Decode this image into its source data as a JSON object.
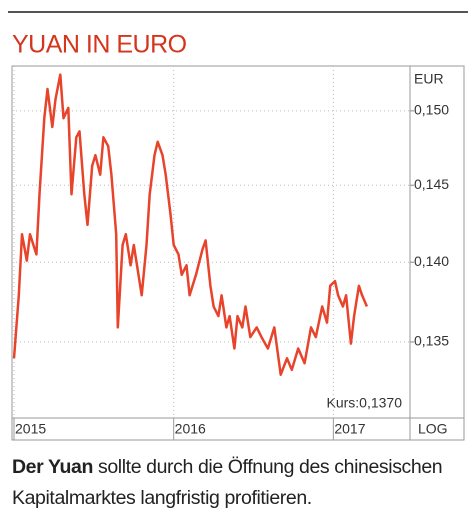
{
  "chart_data": {
    "type": "line",
    "title": "YUAN IN EURO",
    "ylabel": "EUR",
    "scale_label": "LOG",
    "log_scale": true,
    "grid": true,
    "annotation": "Kurs:0,1370",
    "x": [
      2015.0,
      2015.03,
      2015.05,
      2015.08,
      2015.1,
      2015.14,
      2015.16,
      2015.19,
      2015.21,
      2015.24,
      2015.26,
      2015.29,
      2015.31,
      2015.34,
      2015.36,
      2015.39,
      2015.41,
      2015.44,
      2015.46,
      2015.49,
      2015.51,
      2015.54,
      2015.56,
      2015.59,
      2015.61,
      2015.64,
      2015.65,
      2015.68,
      2015.7,
      2015.73,
      2015.75,
      2015.78,
      2015.8,
      2015.83,
      2015.85,
      2015.88,
      2015.9,
      2015.93,
      2015.95,
      2015.98,
      2016.0,
      2016.03,
      2016.05,
      2016.08,
      2016.1,
      2016.14,
      2016.18,
      2016.2,
      2016.23,
      2016.25,
      2016.28,
      2016.3,
      2016.33,
      2016.35,
      2016.38,
      2016.4,
      2016.43,
      2016.45,
      2016.48,
      2016.52,
      2016.55,
      2016.59,
      2016.63,
      2016.67,
      2016.71,
      2016.74,
      2016.78,
      2016.82,
      2016.86,
      2016.89,
      2016.93,
      2016.96,
      2016.98,
      2017.01,
      2017.03,
      2017.06,
      2017.08,
      2017.11,
      2017.13,
      2017.16,
      2017.18,
      2017.21
    ],
    "series": [
      {
        "name": "Yuan in Euro",
        "color": "#e8432b",
        "values": [
          0.134,
          0.1379,
          0.1418,
          0.1401,
          0.1418,
          0.1405,
          0.1444,
          0.1495,
          0.1515,
          0.1489,
          0.1508,
          0.1525,
          0.1495,
          0.1502,
          0.1444,
          0.1482,
          0.1486,
          0.1444,
          0.1424,
          0.1463,
          0.147,
          0.1457,
          0.1482,
          0.1476,
          0.1457,
          0.1418,
          0.1359,
          0.1411,
          0.1418,
          0.1398,
          0.1411,
          0.1392,
          0.1379,
          0.1411,
          0.1444,
          0.147,
          0.1479,
          0.147,
          0.1457,
          0.1431,
          0.1411,
          0.1405,
          0.1392,
          0.1398,
          0.1379,
          0.1392,
          0.1408,
          0.1414,
          0.1385,
          0.1372,
          0.1366,
          0.1379,
          0.1359,
          0.1366,
          0.1346,
          0.1366,
          0.1359,
          0.1372,
          0.1353,
          0.1359,
          0.1353,
          0.1346,
          0.1359,
          0.133,
          0.134,
          0.1333,
          0.1346,
          0.1337,
          0.1359,
          0.1353,
          0.1372,
          0.1362,
          0.1385,
          0.1388,
          0.1379,
          0.1372,
          0.1379,
          0.1349,
          0.1366,
          0.1385,
          0.1379,
          0.1372
        ]
      }
    ],
    "xlim": [
      2015,
      2017.48
    ],
    "xticks": [
      2015,
      2016,
      2017
    ],
    "ylim": [
      0.1304,
      0.1531
    ],
    "yticks": [
      {
        "value": 0.135,
        "label": "0,135"
      },
      {
        "value": 0.14,
        "label": "0,140"
      },
      {
        "value": 0.145,
        "label": "0,145"
      },
      {
        "value": 0.15,
        "label": "0,150"
      }
    ],
    "caption_lead": "Der Yuan",
    "caption": "sollte durch die Öffnung des chinesischen Kapitalmarktes langfristig profitieren."
  }
}
